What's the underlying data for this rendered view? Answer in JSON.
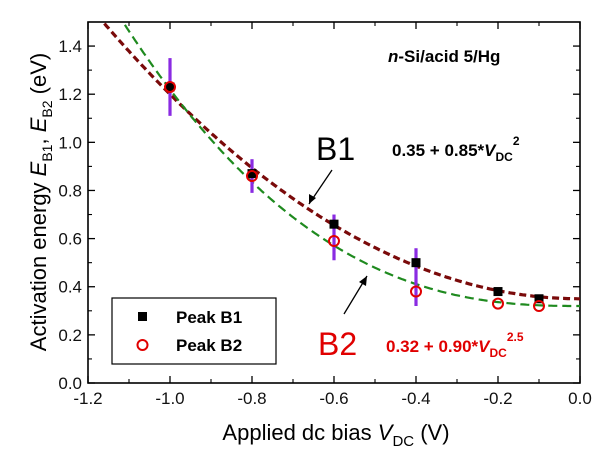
{
  "chart_data": {
    "type": "scatter",
    "x_axis": {
      "label_main": "Applied dc bias ",
      "label_var": "V",
      "label_sub": "DC",
      "label_unit": " (V)",
      "range": [
        -1.2,
        0.0
      ],
      "ticks": [
        "-1.2",
        "-1.0",
        "-0.8",
        "-0.6",
        "-0.4",
        "-0.2",
        "0.0"
      ],
      "tick_values": [
        -1.2,
        -1.0,
        -0.8,
        -0.6,
        -0.4,
        -0.2,
        0.0
      ]
    },
    "y_axis": {
      "label_main": "Activation energy ",
      "label_e1": "E",
      "label_s1": "B1",
      "label_sep": ", ",
      "label_e2": "E",
      "label_s2": "B2",
      "label_unit": " (eV)",
      "range": [
        0.0,
        1.5
      ],
      "ticks": [
        "0.0",
        "0.2",
        "0.4",
        "0.6",
        "0.8",
        "1.0",
        "1.2",
        "1.4"
      ],
      "tick_values": [
        0.0,
        0.2,
        0.4,
        0.6,
        0.8,
        1.0,
        1.2,
        1.4
      ]
    },
    "series": [
      {
        "name": "Peak B1",
        "marker": "filled-square",
        "color": "#000000",
        "x": [
          -1.0,
          -0.8,
          -0.6,
          -0.4,
          -0.2,
          -0.1
        ],
        "y": [
          1.23,
          0.87,
          0.66,
          0.5,
          0.38,
          0.35
        ]
      },
      {
        "name": "Peak B2",
        "marker": "open-circle",
        "color": "#e00000",
        "x": [
          -1.0,
          -0.8,
          -0.6,
          -0.4,
          -0.2,
          -0.1
        ],
        "y": [
          1.23,
          0.86,
          0.59,
          0.38,
          0.33,
          0.32
        ]
      }
    ],
    "error_bars": {
      "color": "#8a2be2",
      "x": [
        -1.0,
        -0.8,
        -0.6,
        -0.4
      ],
      "low": [
        1.11,
        0.79,
        0.51,
        0.32
      ],
      "high": [
        1.35,
        0.93,
        0.7,
        0.56
      ]
    },
    "fits": [
      {
        "series": "Peak B1",
        "a": 0.35,
        "b": 0.85,
        "n": 2.0,
        "color": "#7a0a0a",
        "style": "dashed"
      },
      {
        "series": "Peak B2",
        "a": 0.32,
        "b": 0.9,
        "n": 2.5,
        "color": "#1f8a1f",
        "style": "dashed"
      }
    ],
    "annotations": {
      "sample_label_italic": "n",
      "sample_label_rest": "-Si/acid 5/Hg",
      "b1_label": "B1",
      "b2_label": "B2",
      "b1_fit_text": "0.35 + 0.85*",
      "b1_fit_var": "V",
      "b1_fit_sub": "DC",
      "b1_fit_exp": "2",
      "b2_fit_text": "0.32 + 0.90*",
      "b2_fit_var": "V",
      "b2_fit_sub": "DC",
      "b2_fit_exp": "2.5",
      "b1_color": "#000000",
      "b2_color": "#e00000"
    },
    "legend": {
      "placement": "bottom-left",
      "entries": [
        "Peak B1",
        "Peak B2"
      ]
    },
    "grid": false
  }
}
